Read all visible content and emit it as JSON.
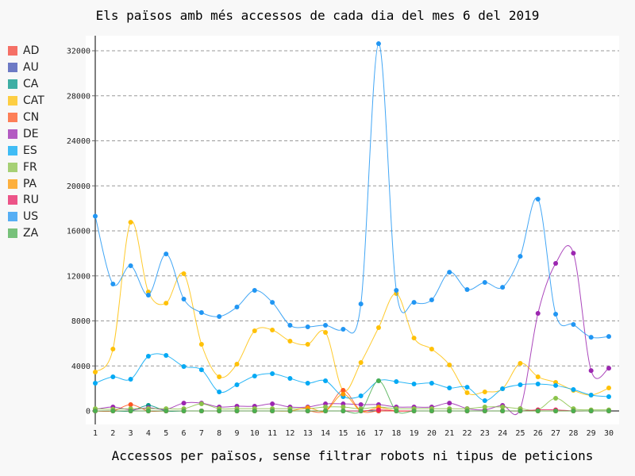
{
  "chart_data": {
    "type": "line",
    "title": "Els països amb més accessos de cada dia del mes 6 del 2019",
    "xlabel": "Accessos per països, sense filtrar robots ni tipus de peticions",
    "ylabel": "",
    "ylim": [
      0,
      32000
    ],
    "yticks": [
      0,
      4000,
      8000,
      12000,
      16000,
      20000,
      24000,
      28000,
      32000
    ],
    "grid": true,
    "legend": "left",
    "x": [
      1,
      2,
      3,
      4,
      5,
      6,
      7,
      8,
      9,
      10,
      11,
      12,
      13,
      14,
      15,
      16,
      17,
      18,
      19,
      20,
      21,
      22,
      23,
      24,
      25,
      26,
      27,
      28,
      29,
      30
    ],
    "series": [
      {
        "name": "AD",
        "color": "#F44336",
        "values": [
          0,
          0,
          0,
          0,
          0,
          0,
          0,
          0,
          0,
          0,
          0,
          0,
          0,
          0,
          0,
          0,
          0,
          0,
          0,
          0,
          0,
          0,
          0,
          0,
          0,
          0,
          0,
          0,
          0,
          0
        ]
      },
      {
        "name": "AU",
        "color": "#3F51B5",
        "values": [
          0,
          0,
          0,
          0,
          0,
          0,
          0,
          0,
          0,
          0,
          0,
          0,
          0,
          0,
          0,
          0,
          0,
          0,
          0,
          0,
          0,
          0,
          0,
          0,
          0,
          0,
          0,
          0,
          0,
          0
        ]
      },
      {
        "name": "CA",
        "color": "#009688",
        "values": [
          0,
          0,
          0,
          490,
          0,
          0,
          0,
          0,
          0,
          0,
          0,
          0,
          0,
          0,
          0,
          0,
          0,
          0,
          0,
          0,
          0,
          0,
          0,
          0,
          0,
          0,
          0,
          0,
          0,
          0
        ]
      },
      {
        "name": "CAT",
        "color": "#FFC107",
        "values": [
          3450,
          5500,
          16770,
          10570,
          9580,
          12190,
          5920,
          3030,
          4160,
          7120,
          7190,
          6200,
          5920,
          6980,
          1830,
          4300,
          7400,
          10430,
          6480,
          5500,
          4090,
          1620,
          1690,
          1970,
          4230,
          3030,
          2540,
          1830,
          1410,
          2040
        ]
      },
      {
        "name": "CN",
        "color": "#FF5722",
        "values": [
          0,
          0,
          560,
          0,
          0,
          0,
          0,
          0,
          0,
          0,
          0,
          0,
          0,
          0,
          1830,
          0,
          0,
          0,
          0,
          0,
          0,
          0,
          0,
          0,
          0,
          0,
          0,
          0,
          0,
          0
        ]
      },
      {
        "name": "DE",
        "color": "#9C27B0",
        "values": [
          140,
          350,
          100,
          280,
          140,
          700,
          700,
          350,
          420,
          420,
          630,
          350,
          350,
          630,
          630,
          560,
          560,
          350,
          350,
          350,
          700,
          210,
          100,
          490,
          210,
          8670,
          13110,
          14020,
          3590,
          3800
        ]
      },
      {
        "name": "ES",
        "color": "#03A9F4",
        "values": [
          2470,
          3030,
          2820,
          4860,
          4930,
          3950,
          3660,
          1690,
          2330,
          3100,
          3310,
          2890,
          2470,
          2680,
          1270,
          1340,
          2680,
          2610,
          2400,
          2470,
          2040,
          2110,
          920,
          1970,
          2330,
          2400,
          2260,
          1900,
          1410,
          1270
        ]
      },
      {
        "name": "FR",
        "color": "#8BC34A",
        "values": [
          200,
          150,
          200,
          200,
          200,
          200,
          630,
          200,
          200,
          200,
          200,
          200,
          200,
          350,
          350,
          200,
          350,
          200,
          200,
          200,
          200,
          200,
          350,
          350,
          200,
          100,
          1130,
          200,
          100,
          100
        ]
      },
      {
        "name": "PA",
        "color": "#FF9800",
        "values": [
          0,
          0,
          0,
          0,
          0,
          0,
          0,
          0,
          0,
          0,
          0,
          0,
          280,
          0,
          1500,
          0,
          300,
          0,
          0,
          0,
          0,
          0,
          0,
          0,
          0,
          0,
          0,
          0,
          0,
          0
        ]
      },
      {
        "name": "RU",
        "color": "#E91E63",
        "values": [
          0,
          0,
          0,
          0,
          0,
          0,
          0,
          0,
          0,
          0,
          0,
          0,
          0,
          0,
          0,
          0,
          100,
          0,
          0,
          0,
          0,
          0,
          0,
          0,
          0,
          100,
          100,
          0,
          0,
          0
        ]
      },
      {
        "name": "US",
        "color": "#2196F3",
        "values": [
          17300,
          11280,
          12900,
          10290,
          13950,
          9940,
          8740,
          8390,
          9230,
          10710,
          9650,
          7610,
          7470,
          7610,
          7260,
          9510,
          32630,
          10710,
          9650,
          9870,
          12330,
          10780,
          11420,
          10990,
          13740,
          18820,
          8600,
          7680,
          6550,
          6620
        ]
      },
      {
        "name": "ZA",
        "color": "#4CAF50",
        "values": [
          0,
          0,
          0,
          0,
          0,
          0,
          0,
          0,
          0,
          0,
          0,
          0,
          0,
          0,
          0,
          0,
          2680,
          0,
          0,
          0,
          0,
          0,
          0,
          0,
          0,
          0,
          0,
          0,
          0,
          0
        ]
      }
    ]
  }
}
